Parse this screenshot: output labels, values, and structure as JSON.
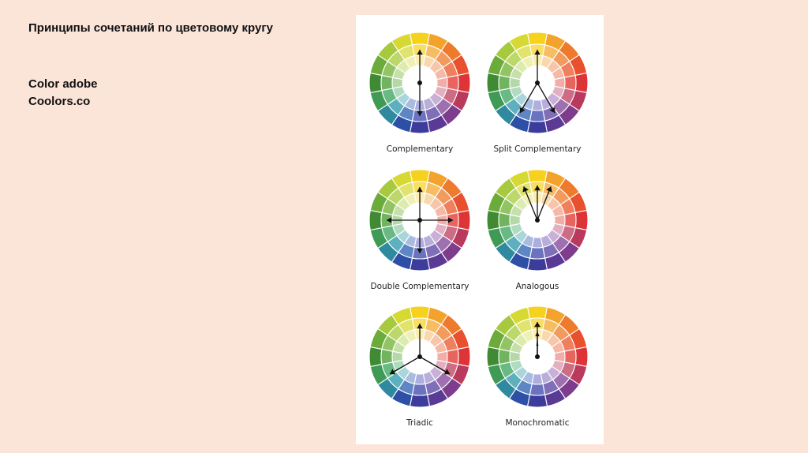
{
  "slide": {
    "title": "Принципы сочетаний по цветовому кругу",
    "links": [
      "Color adobe",
      "Coolors.co"
    ]
  },
  "wheel_colors": {
    "outer": [
      "#f6d21f",
      "#f3a22b",
      "#ee7b2b",
      "#e9502e",
      "#dc3437",
      "#b93a5c",
      "#7d3c8c",
      "#5b3a95",
      "#3c3c9d",
      "#2e4fa6",
      "#2f8a9f",
      "#3f9a55",
      "#3f8a33",
      "#6aab3a",
      "#a7c93d",
      "#d6d934"
    ],
    "middle": [
      "#f8df63",
      "#f6bd63",
      "#f29b5f",
      "#ef7f5d",
      "#e8645f",
      "#cc6c85",
      "#9e70b0",
      "#7f6fb8",
      "#6b73c0",
      "#5f86c4",
      "#5fb0bf",
      "#69b985",
      "#71b45f",
      "#93c464",
      "#bcd76a",
      "#e2e36d"
    ],
    "inner": [
      "#fbeeb1",
      "#f9d8ad",
      "#f7c5a9",
      "#f5b9a6",
      "#f2ada8",
      "#e3b0c1",
      "#c9b0d8",
      "#b8aed9",
      "#adaede",
      "#a9bce0",
      "#aad6db",
      "#afdcc0",
      "#b4d8a8",
      "#c6e0aa",
      "#dcebae",
      "#f1f0b4"
    ]
  },
  "wheels": [
    {
      "label": "Complementary"
    },
    {
      "label": "Split Complementary"
    },
    {
      "label": "Double Complementary"
    },
    {
      "label": "Analogous"
    },
    {
      "label": "Triadic"
    },
    {
      "label": "Monochromatic"
    }
  ]
}
